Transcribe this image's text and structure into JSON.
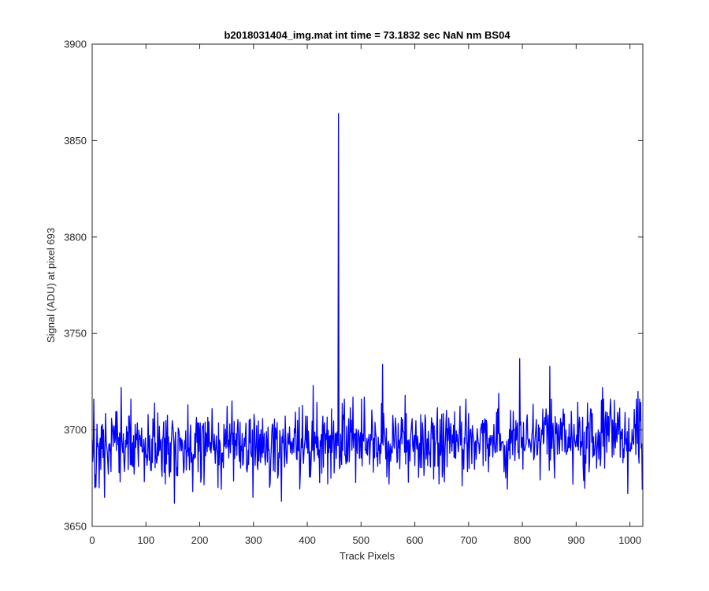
{
  "chart_data": {
    "type": "line",
    "title": "b2018031404_img.mat int time = 73.1832 sec  NaN nm BS04",
    "xlabel": "Track Pixels",
    "ylabel": "Signal (ADU) at pixel 693",
    "xlim": [
      0,
      1024
    ],
    "ylim": [
      3650,
      3900
    ],
    "xticks": [
      0,
      100,
      200,
      300,
      400,
      500,
      600,
      700,
      800,
      900,
      1000
    ],
    "yticks": [
      3650,
      3700,
      3750,
      3800,
      3850,
      3900
    ],
    "grid": false,
    "legend": "none",
    "series": [
      {
        "color": "#0000ff",
        "noise": {
          "n": 1024,
          "baseline_start": 3690,
          "baseline_end": 3697,
          "std": 9,
          "seed": 20180314
        },
        "points": [
          {
            "x": 0,
            "y": 3695
          },
          {
            "x": 5,
            "y": 3670
          },
          {
            "x": 9,
            "y": 3703
          },
          {
            "x": 13,
            "y": 3670
          },
          {
            "x": 17,
            "y": 3702
          },
          {
            "x": 23,
            "y": 3665
          },
          {
            "x": 36,
            "y": 3706
          },
          {
            "x": 54,
            "y": 3722
          },
          {
            "x": 104,
            "y": 3708
          },
          {
            "x": 116,
            "y": 3714
          },
          {
            "x": 136,
            "y": 3672
          },
          {
            "x": 153,
            "y": 3662
          },
          {
            "x": 178,
            "y": 3713
          },
          {
            "x": 223,
            "y": 3711
          },
          {
            "x": 260,
            "y": 3715
          },
          {
            "x": 299,
            "y": 3665
          },
          {
            "x": 345,
            "y": 3675
          },
          {
            "x": 352,
            "y": 3663
          },
          {
            "x": 411,
            "y": 3723
          },
          {
            "x": 438,
            "y": 3672
          },
          {
            "x": 458,
            "y": 3864
          },
          {
            "x": 460,
            "y": 3680
          },
          {
            "x": 485,
            "y": 3717
          },
          {
            "x": 506,
            "y": 3717
          },
          {
            "x": 540,
            "y": 3734
          },
          {
            "x": 582,
            "y": 3718
          },
          {
            "x": 645,
            "y": 3672
          },
          {
            "x": 756,
            "y": 3719
          },
          {
            "x": 795,
            "y": 3737
          },
          {
            "x": 851,
            "y": 3733
          },
          {
            "x": 860,
            "y": 3675
          },
          {
            "x": 921,
            "y": 3714
          },
          {
            "x": 949,
            "y": 3722
          },
          {
            "x": 996,
            "y": 3667
          },
          {
            "x": 1015,
            "y": 3720
          },
          {
            "x": 1023,
            "y": 3669
          }
        ]
      }
    ]
  }
}
